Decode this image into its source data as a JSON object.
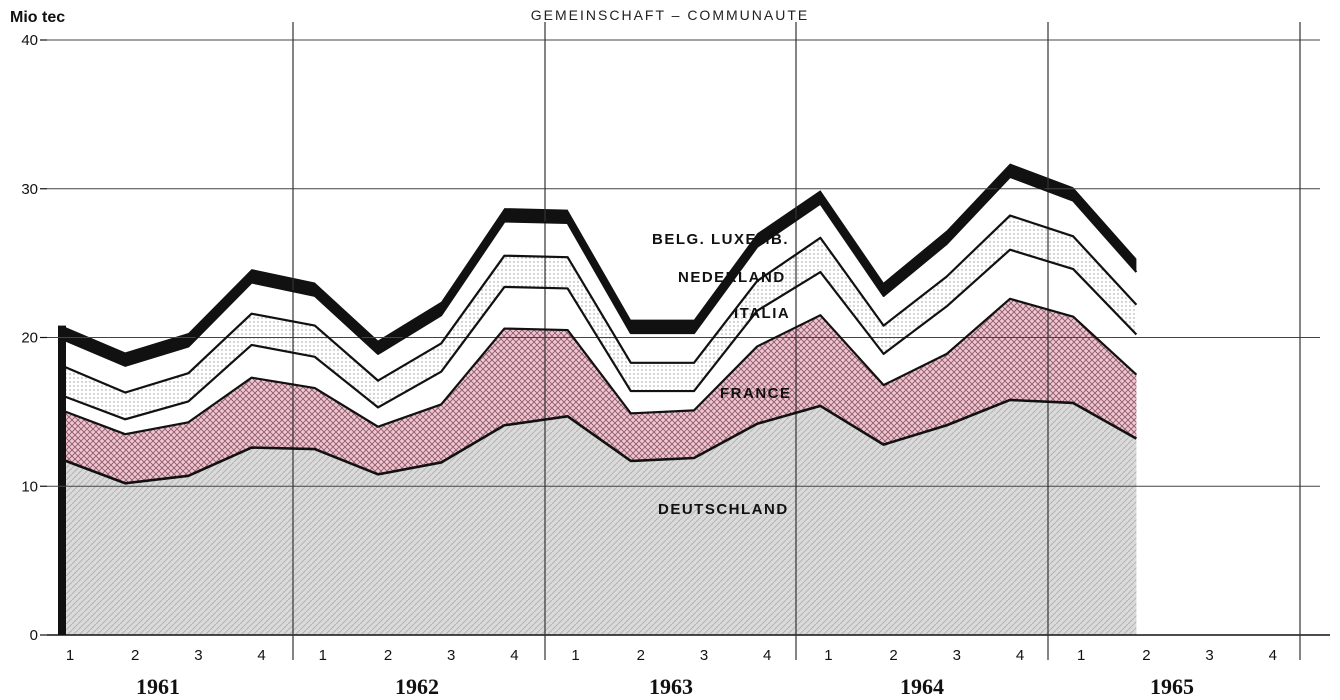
{
  "chart_data": {
    "type": "area",
    "stacked": true,
    "title": "GEMEINSCHAFT  –  COMMUNAUTE",
    "ylabel": "Mio tec",
    "ylim": [
      0,
      40
    ],
    "yticks": [
      0,
      10,
      20,
      30,
      40
    ],
    "years": [
      "1961",
      "1962",
      "1963",
      "1964",
      "1965"
    ],
    "quarter_labels": [
      "1",
      "2",
      "3",
      "4",
      "1",
      "2",
      "3",
      "4",
      "1",
      "2",
      "3",
      "4",
      "1",
      "2",
      "3",
      "4",
      "1",
      "2",
      "3",
      "4"
    ],
    "x": [
      "1961-Q1",
      "1961-Q2",
      "1961-Q3",
      "1961-Q4",
      "1962-Q1",
      "1962-Q2",
      "1962-Q3",
      "1962-Q4",
      "1963-Q1",
      "1963-Q2",
      "1963-Q3",
      "1963-Q4",
      "1964-Q1",
      "1964-Q2",
      "1964-Q3",
      "1964-Q4",
      "1965-Q1",
      "1965-Q2"
    ],
    "series": [
      {
        "name": "DEUTSCHLAND",
        "values": [
          11.8,
          10.2,
          10.7,
          12.6,
          12.5,
          10.8,
          11.6,
          14.1,
          14.7,
          11.7,
          11.9,
          14.2,
          15.4,
          12.8,
          14.1,
          15.8,
          15.6,
          13.2
        ]
      },
      {
        "name": "FRANCE",
        "values": [
          3.3,
          3.3,
          3.6,
          4.7,
          4.1,
          3.2,
          3.9,
          6.5,
          5.8,
          3.2,
          3.2,
          5.2,
          6.1,
          4.0,
          4.8,
          6.8,
          5.8,
          4.3
        ]
      },
      {
        "name": "ITALIA",
        "values": [
          1.0,
          1.0,
          1.4,
          2.2,
          2.1,
          1.3,
          2.2,
          2.8,
          2.8,
          1.5,
          1.3,
          2.4,
          2.9,
          2.1,
          3.2,
          3.3,
          3.2,
          2.7
        ]
      },
      {
        "name": "NEDERLAND",
        "values": [
          2.0,
          1.8,
          1.9,
          2.1,
          2.1,
          1.8,
          1.9,
          2.1,
          2.1,
          1.9,
          1.9,
          2.0,
          2.3,
          1.9,
          2.0,
          2.3,
          2.2,
          2.0
        ]
      },
      {
        "name": "BELG. LUXEMB.",
        "values": [
          1.8,
          1.8,
          1.8,
          2.1,
          2.0,
          1.8,
          1.9,
          2.3,
          2.3,
          2.0,
          2.0,
          2.3,
          2.3,
          2.0,
          2.2,
          2.6,
          2.4,
          2.2
        ]
      }
    ],
    "total_line_thickness": 0.9,
    "grid": true,
    "legend": "inline labels"
  },
  "colors": {
    "DEUTSCHLAND": "#d4d4d4",
    "FRANCE": "#e8b6c4",
    "ITALIA": "#ffffff",
    "NEDERLAND": "#ececec",
    "BELG. LUXEMB.": "#ffffff",
    "line": "#111111",
    "grid": "#444444"
  }
}
